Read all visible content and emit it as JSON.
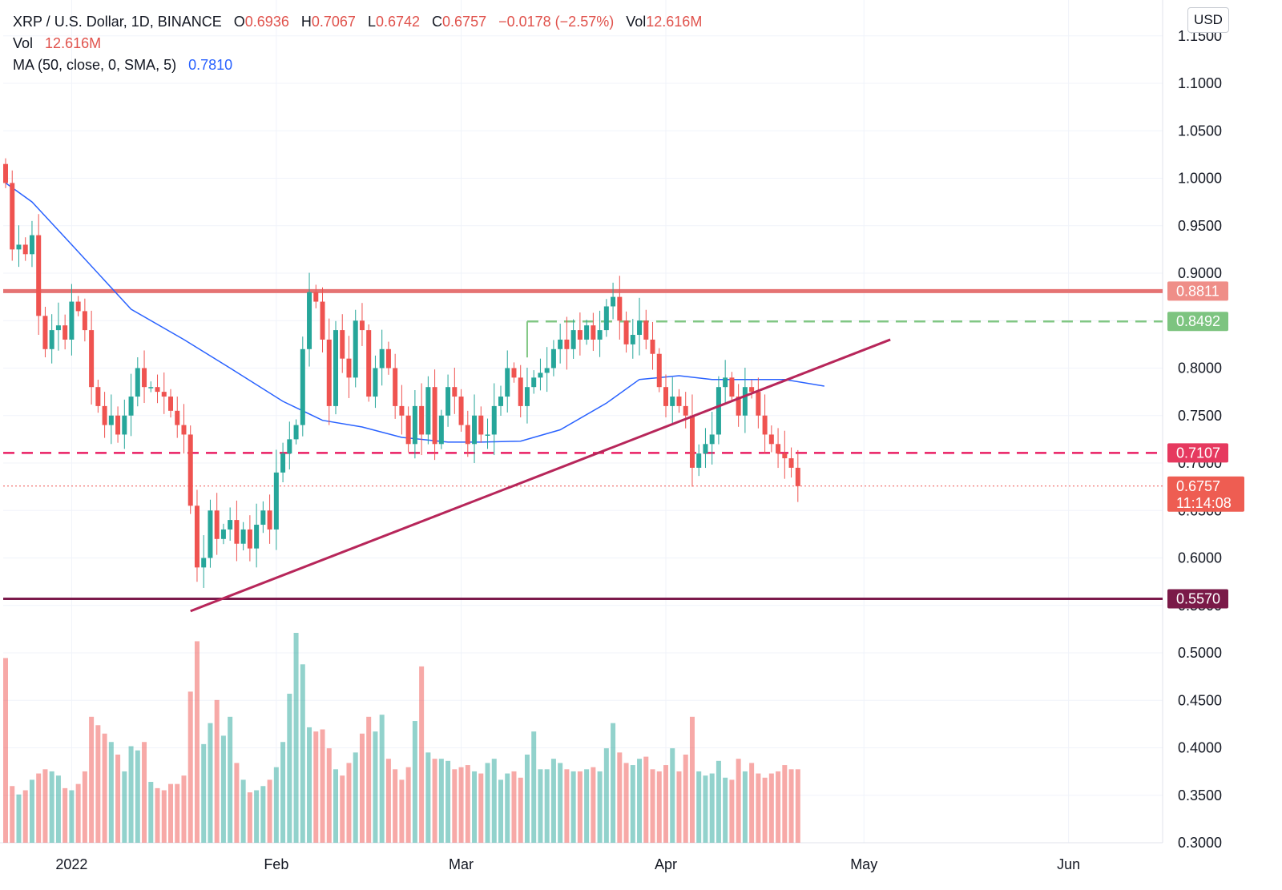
{
  "legend": {
    "symbol": "XRP / U.S. Dollar, 1D, BINANCE",
    "open_label": "O",
    "open": "0.6936",
    "high_label": "H",
    "high": "0.7067",
    "low_label": "L",
    "low": "0.6742",
    "close_label": "C",
    "close": "0.6757",
    "change": "−0.0178 (−2.57%)",
    "vol_label": "Vol",
    "vol": "12.616M",
    "vol_row_label": "Vol",
    "vol_row_value": "12.616M",
    "ma_label": "MA (50, close, 0, SMA, 5)",
    "ma_value": "0.7810"
  },
  "currency_button": "USD",
  "colors": {
    "up": "#26a69a",
    "down": "#ef5350",
    "ma": "#2962ff",
    "resistance": "#e57373",
    "target": "#81c784",
    "support_dashed": "#e91e63",
    "support": "#7b1a4b",
    "trendline": "#b7265a"
  },
  "chart_data": {
    "type": "candlestick",
    "y_axis_ticks": [
      "1.1500",
      "1.1000",
      "1.0500",
      "1.0000",
      "0.9500",
      "0.9000",
      "0.8500",
      "0.8000",
      "0.7500",
      "0.7000",
      "0.6500",
      "0.6000",
      "0.5500",
      "0.5000",
      "0.4500",
      "0.4000",
      "0.3500",
      "0.3000"
    ],
    "ylim": [
      0.3,
      1.16
    ],
    "x_axis_labels": [
      {
        "label": "2022",
        "date": "2022-01-01"
      },
      {
        "label": "Feb",
        "date": "2022-02-01"
      },
      {
        "label": "Mar",
        "date": "2022-03-01"
      },
      {
        "label": "Apr",
        "date": "2022-04-01"
      },
      {
        "label": "May",
        "date": "2022-05-01"
      },
      {
        "label": "Jun",
        "date": "2022-06-01"
      }
    ],
    "first_date": "2021-12-22",
    "xlim_dates": [
      "2021-12-22",
      "2022-06-20"
    ],
    "closes": [
      0.995,
      0.925,
      0.93,
      0.92,
      0.94,
      0.855,
      0.82,
      0.84,
      0.845,
      0.83,
      0.87,
      0.86,
      0.84,
      0.78,
      0.76,
      0.74,
      0.75,
      0.73,
      0.75,
      0.77,
      0.8,
      0.78,
      0.78,
      0.775,
      0.77,
      0.755,
      0.74,
      0.73,
      0.655,
      0.59,
      0.6,
      0.65,
      0.62,
      0.63,
      0.64,
      0.615,
      0.63,
      0.61,
      0.635,
      0.65,
      0.63,
      0.69,
      0.71,
      0.725,
      0.74,
      0.82,
      0.88,
      0.87,
      0.83,
      0.76,
      0.84,
      0.81,
      0.79,
      0.85,
      0.84,
      0.77,
      0.8,
      0.82,
      0.8,
      0.76,
      0.75,
      0.72,
      0.76,
      0.73,
      0.78,
      0.72,
      0.75,
      0.78,
      0.77,
      0.74,
      0.72,
      0.75,
      0.73,
      0.73,
      0.76,
      0.77,
      0.8,
      0.79,
      0.76,
      0.78,
      0.79,
      0.795,
      0.8,
      0.82,
      0.83,
      0.82,
      0.84,
      0.83,
      0.845,
      0.83,
      0.84,
      0.865,
      0.875,
      0.85,
      0.825,
      0.835,
      0.85,
      0.83,
      0.815,
      0.78,
      0.76,
      0.77,
      0.76,
      0.75,
      0.695,
      0.71,
      0.72,
      0.73,
      0.78,
      0.79,
      0.77,
      0.75,
      0.78,
      0.775,
      0.75,
      0.73,
      0.72,
      0.71,
      0.705,
      0.695,
      0.6757
    ],
    "series": [
      {
        "name": "MA (50, close, 0, SMA, 5)",
        "points": [
          {
            "date": "2021-12-22",
            "value": 0.995
          },
          {
            "date": "2021-12-26",
            "value": 0.975
          },
          {
            "date": "2022-01-01",
            "value": 0.93
          },
          {
            "date": "2022-01-10",
            "value": 0.862
          },
          {
            "date": "2022-01-18",
            "value": 0.83
          },
          {
            "date": "2022-01-25",
            "value": 0.8
          },
          {
            "date": "2022-02-02",
            "value": 0.765
          },
          {
            "date": "2022-02-08",
            "value": 0.745
          },
          {
            "date": "2022-02-14",
            "value": 0.738
          },
          {
            "date": "2022-02-20",
            "value": 0.727
          },
          {
            "date": "2022-02-27",
            "value": 0.722
          },
          {
            "date": "2022-03-04",
            "value": 0.722
          },
          {
            "date": "2022-03-10",
            "value": 0.723
          },
          {
            "date": "2022-03-16",
            "value": 0.735
          },
          {
            "date": "2022-03-23",
            "value": 0.763
          },
          {
            "date": "2022-03-28",
            "value": 0.788
          },
          {
            "date": "2022-04-03",
            "value": 0.792
          },
          {
            "date": "2022-04-08",
            "value": 0.788
          },
          {
            "date": "2022-04-14",
            "value": 0.788
          },
          {
            "date": "2022-04-19",
            "value": 0.788
          },
          {
            "date": "2022-04-25",
            "value": 0.781
          }
        ]
      }
    ],
    "horizontal_levels": [
      {
        "label": "0.8811",
        "value": 0.8811,
        "style": "solid",
        "color": "#e57373",
        "badge": "#ef8e88",
        "from": "start"
      },
      {
        "label": "0.8492",
        "value": 0.8492,
        "style": "dashed",
        "color": "#81c784",
        "badge": "#7dc480",
        "from": "2022-03-11"
      },
      {
        "label": "0.7107",
        "value": 0.7107,
        "style": "dashed",
        "color": "#e91e63",
        "badge": "#e6395f",
        "from": "start"
      },
      {
        "label": "0.6757",
        "value": 0.6757,
        "style": "dotted",
        "color": "#ef5350",
        "badge": "#ee5d52",
        "from": "start",
        "sublabel": "11:14:08"
      },
      {
        "label": "0.5570",
        "value": 0.557,
        "style": "solid",
        "color": "#7b1a4b",
        "badge": "#7a1a48",
        "from": "start"
      }
    ],
    "trendline": {
      "start": {
        "date": "2022-01-19",
        "value": 0.544
      },
      "end": {
        "date": "2022-05-05",
        "value": 0.83
      }
    },
    "volume_note": "relative bar heights (0–1)",
    "volume": [
      0.88,
      0.27,
      0.23,
      0.25,
      0.3,
      0.33,
      0.35,
      0.34,
      0.32,
      0.26,
      0.25,
      0.28,
      0.34,
      0.6,
      0.56,
      0.52,
      0.48,
      0.42,
      0.34,
      0.46,
      0.44,
      0.48,
      0.29,
      0.26,
      0.25,
      0.28,
      0.28,
      0.32,
      0.72,
      0.96,
      0.47,
      0.57,
      0.68,
      0.51,
      0.6,
      0.38,
      0.3,
      0.24,
      0.25,
      0.27,
      0.3,
      0.36,
      0.48,
      0.71,
      1.0,
      0.85,
      0.55,
      0.53,
      0.54,
      0.45,
      0.35,
      0.32,
      0.38,
      0.43,
      0.52,
      0.6,
      0.53,
      0.61,
      0.4,
      0.35,
      0.3,
      0.36,
      0.58,
      0.84,
      0.43,
      0.4,
      0.4,
      0.39,
      0.35,
      0.36,
      0.37,
      0.34,
      0.33,
      0.38,
      0.4,
      0.3,
      0.33,
      0.34,
      0.31,
      0.42,
      0.53,
      0.35,
      0.35,
      0.4,
      0.38,
      0.35,
      0.34,
      0.34,
      0.35,
      0.36,
      0.34,
      0.45,
      0.57,
      0.43,
      0.38,
      0.37,
      0.4,
      0.41,
      0.35,
      0.34,
      0.37,
      0.45,
      0.34,
      0.42,
      0.6,
      0.34,
      0.32,
      0.33,
      0.39,
      0.31,
      0.3,
      0.4,
      0.34,
      0.38,
      0.33,
      0.31,
      0.33,
      0.34,
      0.37,
      0.35,
      0.35
    ]
  }
}
